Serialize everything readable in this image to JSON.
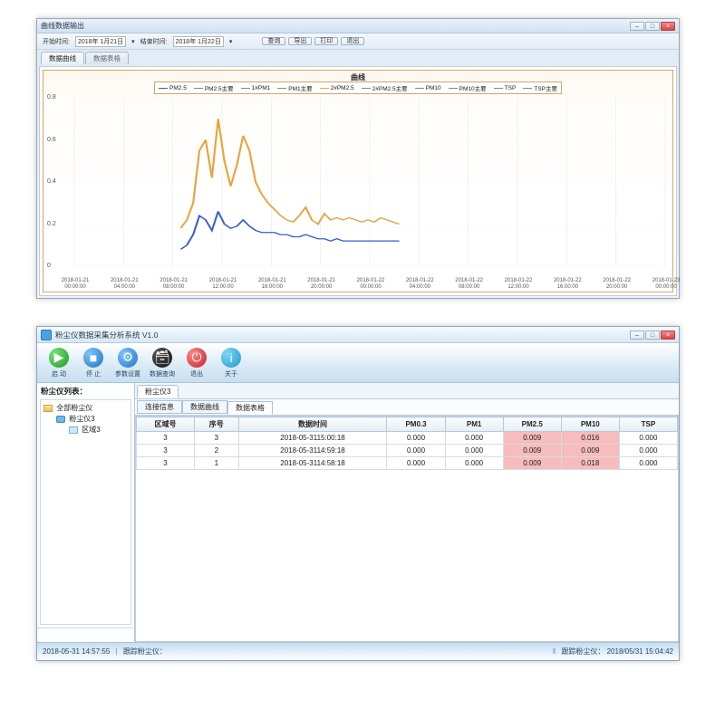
{
  "win1": {
    "title": "曲线数据输出",
    "toolbar": {
      "startLabel": "开始时间:",
      "start": "2018年 1月21日",
      "endLabel": "结束时间:",
      "end": "2018年 1月22日",
      "buttons": [
        "查询",
        "导出",
        "打印",
        "退出"
      ]
    },
    "tabs": {
      "active": "数据曲线",
      "inactive": "数据表格"
    },
    "chart": {
      "type": "line",
      "title": "曲线",
      "background_color": "#ffffff",
      "frame_color": "#d6a668",
      "grid_color": "#ececec",
      "ylim": [
        0,
        0.8
      ],
      "yticks": [
        0,
        0.2,
        0.4,
        0.6,
        0.8
      ],
      "xticks": [
        "2018-01-21\n00:00:00",
        "2018-01-21\n04:00:00",
        "2018-01-21\n08:00:00",
        "2018-01-21\n12:00:00",
        "2018-01-21\n16:00:00",
        "2018-01-21\n20:00:00",
        "2018-01-22\n00:00:00",
        "2018-01-22\n04:00:00",
        "2018-01-22\n08:00:00",
        "2018-01-22\n12:00:00",
        "2018-01-22\n16:00:00",
        "2018-01-22\n20:00:00",
        "2018-01-23\n00:00:00"
      ],
      "legend": [
        {
          "label": "PM2.5",
          "color": "#3a5fcd"
        },
        {
          "label": "PM2.5主要",
          "color": "#888888"
        },
        {
          "label": "1#PM1",
          "color": "#888888"
        },
        {
          "label": "PM1主要",
          "color": "#888888"
        },
        {
          "label": "2#PM2.5",
          "color": "#e8a33c"
        },
        {
          "label": "2#PM2.5主要",
          "color": "#888888"
        },
        {
          "label": "PM10",
          "color": "#888888"
        },
        {
          "label": "PM10主要",
          "color": "#888888"
        },
        {
          "label": "TSP",
          "color": "#888888"
        },
        {
          "label": "TSP主要",
          "color": "#888888"
        }
      ],
      "series": [
        {
          "name": "2#PM2.5",
          "color": "#e8a33c",
          "linewidth": 1.1,
          "x0": 0.18,
          "x1": 0.55,
          "y": [
            0.18,
            0.22,
            0.3,
            0.55,
            0.6,
            0.42,
            0.7,
            0.5,
            0.38,
            0.48,
            0.62,
            0.55,
            0.4,
            0.34,
            0.3,
            0.27,
            0.24,
            0.22,
            0.21,
            0.24,
            0.28,
            0.22,
            0.2,
            0.25,
            0.22,
            0.23,
            0.22,
            0.23,
            0.22,
            0.21,
            0.22,
            0.21,
            0.23,
            0.22,
            0.21,
            0.2
          ]
        },
        {
          "name": "PM2.5",
          "color": "#3a5fcd",
          "linewidth": 1.1,
          "x0": 0.18,
          "x1": 0.55,
          "y": [
            0.08,
            0.1,
            0.15,
            0.24,
            0.22,
            0.17,
            0.26,
            0.2,
            0.18,
            0.19,
            0.22,
            0.19,
            0.17,
            0.16,
            0.16,
            0.16,
            0.15,
            0.15,
            0.14,
            0.14,
            0.15,
            0.14,
            0.13,
            0.13,
            0.12,
            0.13,
            0.12,
            0.12,
            0.12,
            0.12,
            0.12,
            0.12,
            0.12,
            0.12,
            0.12,
            0.12
          ]
        }
      ]
    }
  },
  "win2": {
    "title": "粉尘仪数据采集分析系统 V1.0",
    "ribbon": [
      {
        "name": "start-button",
        "label": "启 动",
        "icon": "ic-start",
        "glyph": "▶"
      },
      {
        "name": "stop-button",
        "label": "停 止",
        "icon": "ic-stop",
        "glyph": "■"
      },
      {
        "name": "settings-button",
        "label": "参数设置",
        "icon": "ic-set",
        "glyph": "⚙"
      },
      {
        "name": "query-button",
        "label": "数据查询",
        "icon": "ic-query",
        "glyph": "🗃"
      },
      {
        "name": "exit-button",
        "label": "退出",
        "icon": "ic-exit",
        "glyph": "⏻"
      },
      {
        "name": "about-button",
        "label": "关于",
        "icon": "ic-about",
        "glyph": "i"
      }
    ],
    "sidebar": {
      "title": "粉尘仪列表：",
      "tree": [
        {
          "level": 0,
          "icon": "tfolder",
          "label": "全部粉尘仪"
        },
        {
          "level": 1,
          "icon": "tnode",
          "label": "粉尘仪3"
        },
        {
          "level": 2,
          "icon": "tarea",
          "label": "区域3"
        }
      ]
    },
    "docTab": "粉尘仪3",
    "subtabs": [
      "连接信息",
      "数据曲线",
      "数据表格"
    ],
    "subtabActive": 2,
    "table": {
      "columns": [
        "区域号",
        "序号",
        "数据时间",
        "PM0.3",
        "PM1",
        "PM2.5",
        "PM10",
        "TSP"
      ],
      "highlightCols": [
        5,
        6
      ],
      "rows": [
        [
          "3",
          "3",
          "2018-05-3115:00:18",
          "0.000",
          "0.000",
          "0.009",
          "0.016",
          "0.000"
        ],
        [
          "3",
          "2",
          "2018-05-3114:59:18",
          "0.000",
          "0.000",
          "0.009",
          "0.009",
          "0.000"
        ],
        [
          "3",
          "1",
          "2018-05-3114:58:18",
          "0.000",
          "0.000",
          "0.009",
          "0.018",
          "0.000"
        ]
      ]
    },
    "status": {
      "left_time": "2018-05-31 14:57:55",
      "left_text": "跟踪粉尘仪：",
      "right_label": "跟踪粉尘仪：",
      "right_time": "2018/05/31 15:04:42"
    }
  }
}
